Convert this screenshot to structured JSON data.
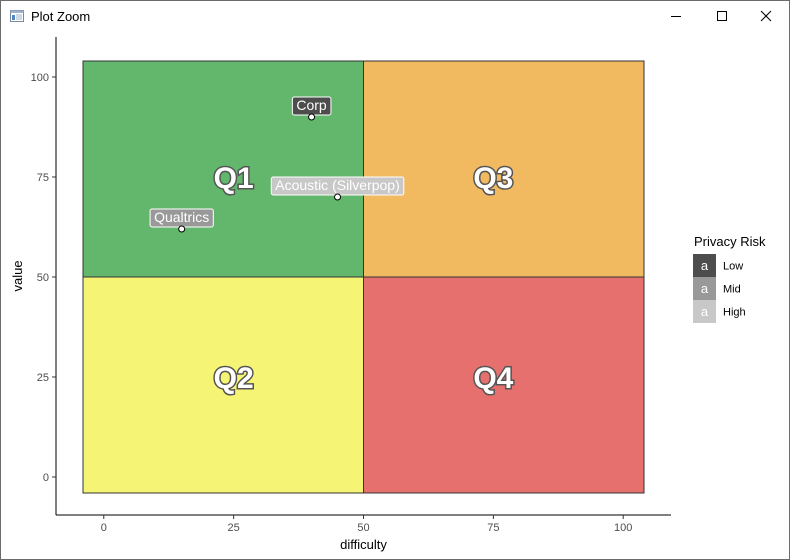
{
  "window": {
    "title": "Plot Zoom",
    "icon": "plot-zoom-app-icon",
    "controls": [
      "minimize-icon",
      "maximize-icon",
      "close-icon"
    ]
  },
  "chart_data": {
    "type": "scatter",
    "title": "",
    "xlabel": "difficulty",
    "ylabel": "value",
    "xlim": [
      -4,
      104
    ],
    "ylim": [
      -4,
      104
    ],
    "xticks": [
      0,
      25,
      50,
      75,
      100
    ],
    "yticks": [
      0,
      25,
      50,
      75,
      100
    ],
    "grid": false,
    "quadrants": [
      {
        "label": "Q1",
        "x": [
          -4,
          50
        ],
        "y": [
          50,
          104
        ],
        "fill": "#63b76c",
        "label_pos": [
          25,
          75
        ]
      },
      {
        "label": "Q2",
        "x": [
          -4,
          50
        ],
        "y": [
          -4,
          50
        ],
        "fill": "#f6f475",
        "label_pos": [
          25,
          25
        ]
      },
      {
        "label": "Q3",
        "x": [
          50,
          104
        ],
        "y": [
          50,
          104
        ],
        "fill": "#f2ba60",
        "label_pos": [
          75,
          75
        ]
      },
      {
        "label": "Q4",
        "x": [
          50,
          104
        ],
        "y": [
          -4,
          50
        ],
        "fill": "#e6706e",
        "label_pos": [
          75,
          25
        ]
      }
    ],
    "points": [
      {
        "label": "Corp",
        "x": 40,
        "y": 90,
        "risk": "Low"
      },
      {
        "label": "Acoustic (Silverpop)",
        "x": 45,
        "y": 70,
        "risk": "High"
      },
      {
        "label": "Qualtrics",
        "x": 15,
        "y": 62,
        "risk": "Mid"
      }
    ],
    "legend": {
      "title": "Privacy Risk",
      "placement": "right",
      "key_glyph": "a",
      "entries": [
        {
          "name": "Low",
          "color": "#4d4d4d"
        },
        {
          "name": "Mid",
          "color": "#999999"
        },
        {
          "name": "High",
          "color": "#c8c8c8"
        }
      ]
    }
  }
}
